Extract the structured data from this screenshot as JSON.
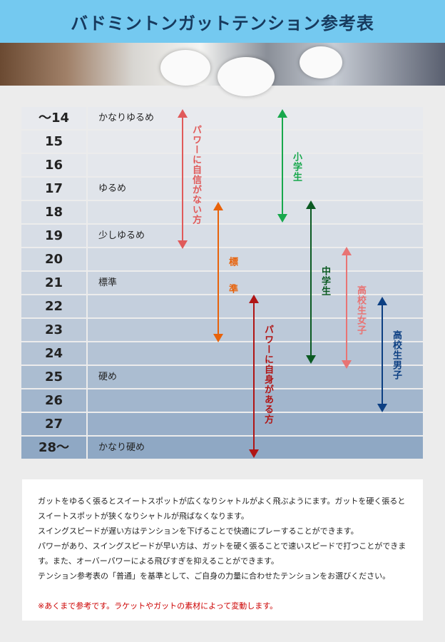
{
  "title": "バドミントンガットテンション参考表",
  "rows": [
    {
      "num": "～14",
      "label": "かなりゆるめ"
    },
    {
      "num": "15",
      "label": ""
    },
    {
      "num": "16",
      "label": ""
    },
    {
      "num": "17",
      "label": "ゆるめ"
    },
    {
      "num": "18",
      "label": ""
    },
    {
      "num": "19",
      "label": "少しゆるめ"
    },
    {
      "num": "20",
      "label": ""
    },
    {
      "num": "21",
      "label": "標準"
    },
    {
      "num": "22",
      "label": ""
    },
    {
      "num": "23",
      "label": ""
    },
    {
      "num": "24",
      "label": ""
    },
    {
      "num": "25",
      "label": "硬め"
    },
    {
      "num": "26",
      "label": ""
    },
    {
      "num": "27",
      "label": ""
    },
    {
      "num": "28～",
      "label": "かなり硬め"
    }
  ],
  "ranges": {
    "weak": {
      "label": "パワーに自信がない方",
      "color": "#e05a5a"
    },
    "standard": {
      "label": "標　準",
      "color": "#e8620a"
    },
    "strong": {
      "label": "パワーに自身がある方",
      "color": "#b01515"
    },
    "elementary": {
      "label": "小学生",
      "color": "#18a84c"
    },
    "junior": {
      "label": "中学生",
      "color": "#0b5a22"
    },
    "hs_girls": {
      "label": "高校生女子",
      "color": "#e87474"
    },
    "hs_boys": {
      "label": "高校生男子",
      "color": "#0c3f82"
    }
  },
  "note": {
    "p1": "ガットをゆるく張るとスイートスポットが広くなりシャトルがよく飛ぶようにます。ガットを硬く張るとスイートスポットが狭くなりシャトルが飛ばなくなります。",
    "p2": "スイングスピードが遅い方はテンションを下げることで快適にプレーすることができます。",
    "p3": "パワーがあり、スイングスピードが早い方は、ガットを硬く張ることで速いスピードで打つことができます。また、オーバーパワーによる飛びすぎを抑えることができます。",
    "p4": "テンション参考表の「普通」を基準として、ご自身の力量に合わせたテンションをお選びください。",
    "warning": "※あくまで参考です。ラケットやガットの素材によって変動します。"
  }
}
